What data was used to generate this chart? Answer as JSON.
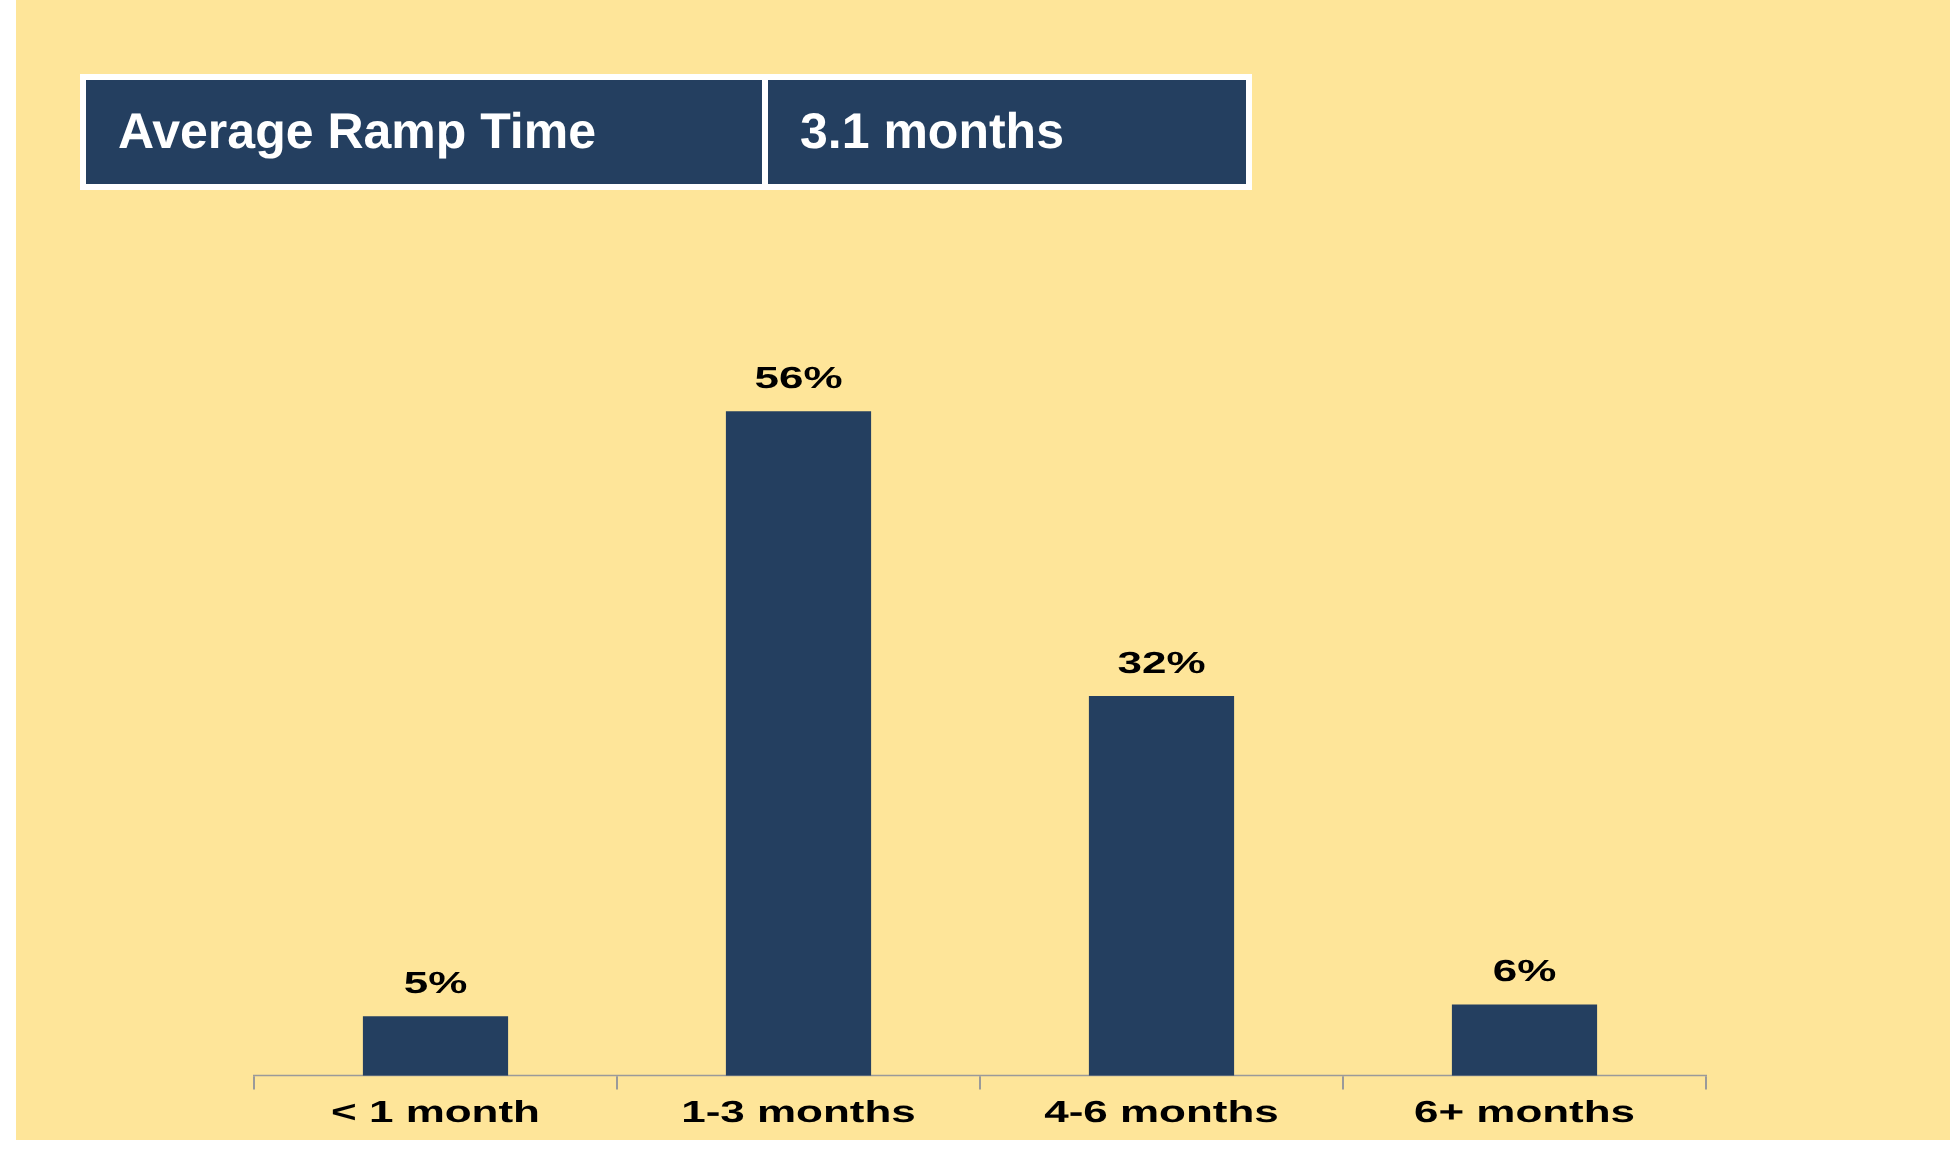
{
  "chart_data": {
    "type": "bar",
    "title": "Average Ramp Time",
    "subtitle": "3.1 months",
    "categories": [
      "< 1 month",
      "1-3 months",
      "4-6 months",
      "6+ months"
    ],
    "values": [
      5,
      56,
      32,
      6
    ],
    "color": "#243f60",
    "value_labels": [
      "5%",
      "56%",
      "32%",
      "6%"
    ],
    "grid": false,
    "legend": false
  }
}
